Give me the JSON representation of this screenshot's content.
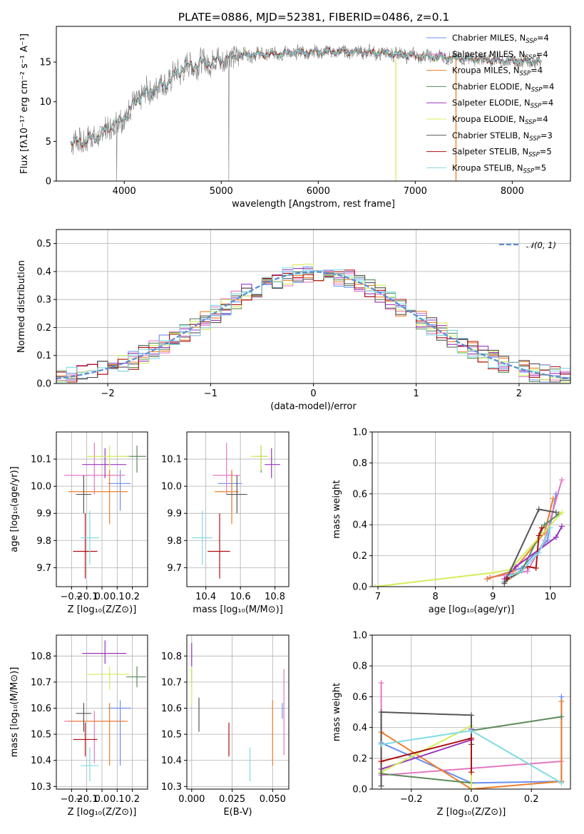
{
  "chart_data": [
    {
      "id": "spectrum",
      "type": "line",
      "title": "PLATE=0886, MJD=52381, FIBERID=0486, z=0.1",
      "xlabel": "wavelength [Angstrom, rest frame]",
      "ylabel": "Flux [fλ10⁻¹⁷ erg cm⁻² s⁻¹ A⁻¹]",
      "xlim": [
        3300,
        8600
      ],
      "ylim": [
        0,
        19.5
      ],
      "xticks": [
        4000,
        5000,
        6000,
        7000,
        8000
      ],
      "yticks": [
        0,
        5,
        10,
        15
      ],
      "grid": false,
      "legend_position": "right",
      "continuum": {
        "x": [
          3450,
          3550,
          3650,
          3750,
          3850,
          3950,
          4050,
          4150,
          4300,
          4450,
          4600,
          4800,
          5000,
          5200,
          5500,
          5800,
          6100,
          6400,
          6700,
          7000,
          7300,
          7600,
          7900,
          8300
        ],
        "y": [
          4.8,
          5.0,
          5.3,
          5.8,
          6.8,
          7.5,
          8.8,
          10.5,
          11.5,
          12.5,
          14.2,
          14.9,
          15.2,
          15.9,
          16.0,
          16.2,
          16.3,
          16.3,
          16.1,
          15.8,
          15.6,
          15.4,
          15.2,
          15.0
        ]
      },
      "data_color": "#808080",
      "series": [
        {
          "name": "Chabrier MILES, N_SSP=4",
          "color": "#6a8ef0"
        },
        {
          "name": "Salpeter MILES, N_SSP=4",
          "color": "#e377c2"
        },
        {
          "name": "Kroupa MILES, N_SSP=4",
          "color": "#ef7f2a"
        },
        {
          "name": "Chabrier ELODIE, N_SSP=4",
          "color": "#5b8a5b"
        },
        {
          "name": "Salpeter ELODIE, N_SSP=4",
          "color": "#9933bb"
        },
        {
          "name": "Kroupa ELODIE, N_SSP=4",
          "color": "#d4ec5a"
        },
        {
          "name": "Chabrier STELIB, N_SSP=3",
          "color": "#555555"
        },
        {
          "name": "Salpeter STELIB, N_SSP=5",
          "color": "#b01010"
        },
        {
          "name": "Kroupa STELIB, N_SSP=5",
          "color": "#7fdbe3"
        }
      ],
      "legend_labels": [
        {
          "main": "Chabrier MILES, N",
          "sub": "SSP",
          "tail": "=4"
        },
        {
          "main": "Salpeter MILES, N",
          "sub": "SSP",
          "tail": "=4"
        },
        {
          "main": "Kroupa MILES, N",
          "sub": "SSP",
          "tail": "=4"
        },
        {
          "main": "Chabrier ELODIE, N",
          "sub": "SSP",
          "tail": "=4"
        },
        {
          "main": "Salpeter ELODIE, N",
          "sub": "SSP",
          "tail": "=4"
        },
        {
          "main": "Kroupa ELODIE, N",
          "sub": "SSP",
          "tail": "=4"
        },
        {
          "main": "Chabrier STELIB, N",
          "sub": "SSP",
          "tail": "=3"
        },
        {
          "main": "Salpeter STELIB, N",
          "sub": "SSP",
          "tail": "=5"
        },
        {
          "main": "Kroupa STELIB, N",
          "sub": "SSP",
          "tail": "=5"
        }
      ]
    },
    {
      "id": "residuals",
      "type": "line",
      "xlabel": "(data-model)/error",
      "ylabel": "Normed distribution",
      "xlim": [
        -2.5,
        2.5
      ],
      "ylim": [
        0,
        0.55
      ],
      "xticks": [
        -2,
        -1,
        0,
        1,
        2
      ],
      "yticks": [
        0.0,
        0.1,
        0.2,
        0.3,
        0.4,
        0.5
      ],
      "grid": true,
      "legend_position": "top-right",
      "reference_curve": {
        "name": "𝒩(0, 1)",
        "mean": 0,
        "sigma": 1,
        "color": "#5b8fd6"
      },
      "bin_width": 0.1
    },
    {
      "id": "age-vs-Z",
      "type": "scatter",
      "xlabel": "Z [log₁₀(Z/Z⊙)]",
      "ylabel": "age  [log₁₀(age/yr)]",
      "xlim": [
        -0.3,
        0.3
      ],
      "ylim": [
        9.63,
        10.2
      ],
      "xticks": [
        -0.2,
        -0.1,
        0.0,
        0.1,
        0.2
      ],
      "yticks": [
        9.7,
        9.8,
        9.9,
        10.0,
        10.1
      ],
      "grid": true,
      "points": [
        {
          "series": "Chabrier MILES",
          "x": 0.12,
          "xerr": [
            0.08,
            0.07
          ],
          "y": 10.01,
          "yerr": [
            0.1,
            0.05
          ]
        },
        {
          "series": "Salpeter MILES",
          "x": -0.05,
          "xerr": [
            0.2,
            0.2
          ],
          "y": 10.04,
          "yerr": [
            0.07,
            0.12
          ]
        },
        {
          "series": "Kroupa MILES",
          "x": 0.05,
          "xerr": [
            0.27,
            0.12
          ],
          "y": 9.98,
          "yerr": [
            0.12,
            0.08
          ]
        },
        {
          "series": "Chabrier ELODIE",
          "x": 0.23,
          "xerr": [
            0.07,
            0.06
          ],
          "y": 10.11,
          "yerr": [
            0.06,
            0.04
          ]
        },
        {
          "series": "Salpeter ELODIE",
          "x": 0.02,
          "xerr": [
            0.15,
            0.14
          ],
          "y": 10.08,
          "yerr": [
            0.05,
            0.06
          ]
        },
        {
          "series": "Kroupa ELODIE",
          "x": 0.05,
          "xerr": [
            0.15,
            0.13
          ],
          "y": 10.11,
          "yerr": [
            0.05,
            0.04
          ]
        },
        {
          "series": "Chabrier STELIB",
          "x": -0.12,
          "xerr": [
            0.05,
            0.05
          ],
          "y": 9.97,
          "yerr": [
            0.07,
            0.07
          ]
        },
        {
          "series": "Salpeter STELIB",
          "x": -0.11,
          "xerr": [
            0.08,
            0.08
          ],
          "y": 9.76,
          "yerr": [
            0.1,
            0.14
          ]
        },
        {
          "series": "Kroupa STELIB",
          "x": -0.08,
          "xerr": [
            0.06,
            0.06
          ],
          "y": 9.81,
          "yerr": [
            0.1,
            0.1
          ]
        }
      ]
    },
    {
      "id": "age-vs-mass",
      "type": "scatter",
      "xlabel": "mass [log₁₀(M/M⊙)]",
      "xlim": [
        10.29,
        10.88
      ],
      "ylim": [
        9.63,
        10.2
      ],
      "xticks": [
        10.4,
        10.6,
        10.8
      ],
      "yticks": [
        9.7,
        9.8,
        9.9,
        10.0,
        10.1
      ],
      "grid": true
    },
    {
      "id": "massweight-vs-age",
      "type": "line",
      "xlabel": "age  [log₁₀(age/yr)]",
      "ylabel": "mass weight",
      "xlim": [
        6.9,
        10.35
      ],
      "ylim": [
        0,
        1.0
      ],
      "xticks": [
        7,
        8,
        9,
        10
      ],
      "yticks": [
        0.0,
        0.2,
        0.4,
        0.6,
        0.8,
        1.0
      ],
      "grid": true,
      "lines": [
        {
          "series": "Chabrier MILES",
          "x": [
            8.9,
            9.5,
            9.95,
            10.1
          ],
          "y": [
            0.05,
            0.12,
            0.3,
            0.6
          ]
        },
        {
          "series": "Salpeter MILES",
          "x": [
            8.95,
            9.6,
            9.9,
            10.2
          ],
          "y": [
            0.06,
            0.1,
            0.3,
            0.69
          ]
        },
        {
          "series": "Kroupa MILES",
          "x": [
            8.9,
            9.35,
            9.9,
            10.05
          ],
          "y": [
            0.05,
            0.1,
            0.35,
            0.57
          ]
        },
        {
          "series": "Chabrier ELODIE",
          "x": [
            9.2,
            9.5,
            9.9,
            10.15
          ],
          "y": [
            0.03,
            0.1,
            0.4,
            0.47
          ]
        },
        {
          "series": "Salpeter ELODIE",
          "x": [
            9.2,
            9.4,
            10.1,
            10.2
          ],
          "y": [
            0.05,
            0.13,
            0.32,
            0.39
          ]
        },
        {
          "series": "Kroupa ELODIE",
          "x": [
            6.95,
            9.0,
            9.3,
            10.2
          ],
          "y": [
            0.0,
            0.09,
            0.11,
            0.48
          ]
        },
        {
          "series": "Chabrier STELIB",
          "x": [
            9.2,
            9.8,
            10.1
          ],
          "y": [
            0.02,
            0.5,
            0.48
          ]
        },
        {
          "series": "Salpeter STELIB",
          "x": [
            9.25,
            9.6,
            9.75,
            9.8,
            9.85
          ],
          "y": [
            0.05,
            0.13,
            0.12,
            0.33,
            0.38
          ]
        },
        {
          "series": "Kroupa STELIB",
          "x": [
            9.3,
            9.5,
            9.8,
            10.0
          ],
          "y": [
            0.07,
            0.1,
            0.22,
            0.38
          ]
        }
      ]
    },
    {
      "id": "mass-vs-Z",
      "type": "scatter",
      "xlabel": "Z [log₁₀(Z/Z⊙)]",
      "ylabel": "mass [log₁₀(M/M⊙)]",
      "xlim": [
        -0.3,
        0.3
      ],
      "ylim": [
        10.29,
        10.88
      ],
      "xticks": [
        -0.2,
        -0.1,
        0.0,
        0.1,
        0.2
      ],
      "yticks": [
        10.3,
        10.4,
        10.5,
        10.6,
        10.7,
        10.8
      ],
      "grid": true
    },
    {
      "id": "mass-vs-EBV",
      "type": "scatter",
      "xlabel": "E(B-V)",
      "xlim": [
        -0.003,
        0.06
      ],
      "ylim": [
        10.29,
        10.88
      ],
      "xticks": [
        0.0,
        0.025,
        0.05
      ],
      "xticklabels": [
        "0.000",
        "0.025",
        "0.050"
      ],
      "yticks": [
        10.3,
        10.4,
        10.5,
        10.6,
        10.7,
        10.8
      ],
      "grid": true,
      "points": [
        {
          "series": "Chabrier MILES",
          "x": 0.056,
          "y": 10.6,
          "yerr": [
            0.04,
            0.02
          ]
        },
        {
          "series": "Salpeter MILES",
          "x": 0.057,
          "y": 10.58,
          "yerr": [
            0.16,
            0.17
          ]
        },
        {
          "series": "Kroupa MILES",
          "x": 0.05,
          "y": 10.5,
          "yerr": [
            0.12,
            0.13
          ]
        },
        {
          "series": "Chabrier ELODIE",
          "x": 0.0,
          "y": 10.73,
          "yerr": [
            0.03,
            0.02
          ]
        },
        {
          "series": "Salpeter ELODIE",
          "x": 0.0,
          "y": 10.8,
          "yerr": [
            0.04,
            0.05
          ]
        },
        {
          "series": "Kroupa ELODIE",
          "x": 0.0,
          "y": 10.69,
          "yerr": [
            0.08,
            0.07
          ]
        },
        {
          "series": "Chabrier STELIB",
          "x": 0.0045,
          "y": 10.58,
          "yerr": [
            0.07,
            0.06
          ]
        },
        {
          "series": "Salpeter STELIB",
          "x": 0.023,
          "y": 10.48,
          "yerr": [
            0.065,
            0.065
          ]
        },
        {
          "series": "Kroupa STELIB",
          "x": 0.036,
          "y": 10.38,
          "yerr": [
            0.06,
            0.07
          ]
        }
      ]
    },
    {
      "id": "massweight-vs-Z",
      "type": "line",
      "xlabel": "Z [log₁₀(Z/Z⊙)]",
      "ylabel": "mass weight",
      "xlim": [
        -0.33,
        0.33
      ],
      "ylim": [
        0,
        1.0
      ],
      "xticks": [
        -0.2,
        0.0,
        0.2
      ],
      "yticks": [
        0.0,
        0.2,
        0.4,
        0.6,
        0.8,
        1.0
      ],
      "grid": true,
      "lines": [
        {
          "series": "Chabrier MILES",
          "x": [
            -0.3,
            0.0,
            0.3,
            0.3
          ],
          "y": [
            0.3,
            0.04,
            0.05,
            0.6
          ]
        },
        {
          "series": "Salpeter MILES",
          "x": [
            -0.3,
            -0.3,
            0.3,
            0.3
          ],
          "y": [
            0.69,
            0.09,
            0.18,
            0.04
          ]
        },
        {
          "series": "Kroupa MILES",
          "x": [
            -0.3,
            0.0,
            0.3,
            0.3
          ],
          "y": [
            0.37,
            0.0,
            0.05,
            0.57
          ]
        },
        {
          "series": "Chabrier ELODIE",
          "x": [
            -0.3,
            0.0,
            0.0,
            0.3
          ],
          "y": [
            0.1,
            0.04,
            0.38,
            0.47
          ]
        },
        {
          "series": "Salpeter ELODIE",
          "x": [
            -0.3,
            0.0,
            0.0
          ],
          "y": [
            0.13,
            0.32,
            0.39
          ]
        },
        {
          "series": "Kroupa ELODIE",
          "x": [
            -0.3,
            0.0,
            0.0
          ],
          "y": [
            0.11,
            0.41,
            0.0
          ]
        },
        {
          "series": "Chabrier STELIB",
          "x": [
            -0.3,
            -0.3,
            0.0,
            0.0
          ],
          "y": [
            0.02,
            0.5,
            0.48,
            0.29
          ]
        },
        {
          "series": "Salpeter STELIB",
          "x": [
            -0.3,
            0.0,
            0.0
          ],
          "y": [
            0.18,
            0.33,
            0.11
          ]
        },
        {
          "series": "Kroupa STELIB",
          "x": [
            -0.3,
            0.0,
            0.3
          ],
          "y": [
            0.29,
            0.38,
            0.04
          ]
        }
      ]
    }
  ]
}
